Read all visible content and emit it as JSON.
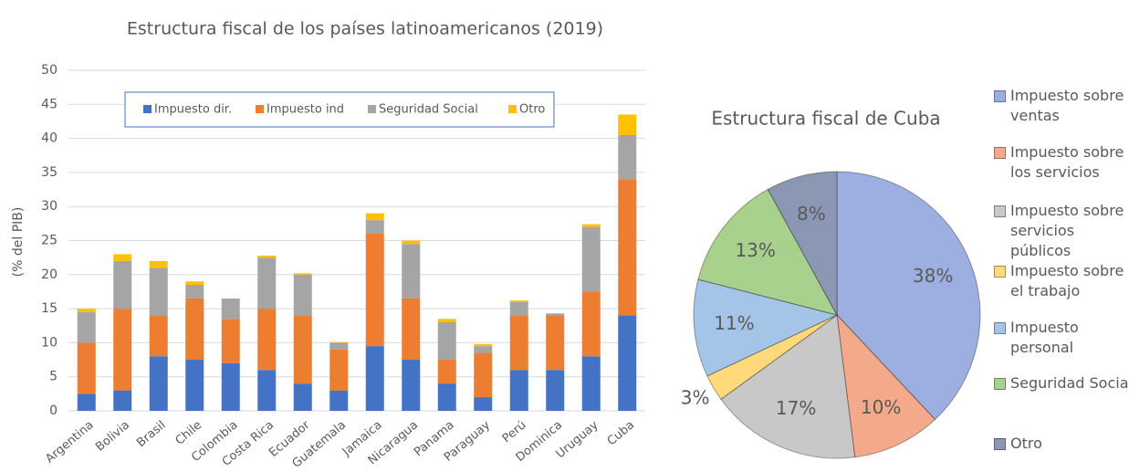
{
  "chart_data": [
    {
      "type": "bar",
      "stacked": true,
      "title": "Estructura fiscal de los países latinoamericanos (2019)",
      "y_label": "(% del PIB)",
      "categories": [
        "Argentina",
        "Bolivia",
        "Brasil",
        "Chile",
        "Colombia",
        "Costa Rica",
        "Ecuador",
        "Guatemala",
        "Jamaica",
        "Nicaragua",
        "Panama",
        "Paraguay",
        "Perú",
        "Dominica",
        "Uruguay",
        "Cuba"
      ],
      "series": [
        {
          "name": "Impuesto dir.",
          "color": "#4472c4",
          "values": [
            2.5,
            3,
            8,
            7.5,
            7,
            6,
            4,
            3,
            9.5,
            7.5,
            4,
            2,
            6,
            6,
            8,
            14
          ]
        },
        {
          "name": "Impuesto ind",
          "color": "#ed7d31",
          "values": [
            7.5,
            12,
            6,
            9,
            6.5,
            9,
            10,
            6,
            16.5,
            9,
            3.5,
            6.5,
            8,
            8,
            9.5,
            20
          ]
        },
        {
          "name": "Seguridad Social",
          "color": "#a5a5a5",
          "values": [
            4.5,
            7,
            7,
            2,
            3,
            7.5,
            6,
            1,
            2,
            8,
            5.5,
            1,
            2,
            0.3,
            9.5,
            6.5
          ]
        },
        {
          "name": "Otro",
          "color": "#ffc000",
          "values": [
            0.5,
            1,
            1,
            0.5,
            0,
            0.3,
            0.2,
            0.1,
            1,
            0.5,
            0.5,
            0.3,
            0.2,
            0,
            0.4,
            3
          ]
        }
      ],
      "ylim": [
        0,
        50
      ],
      "yticks": [
        0,
        5,
        10,
        15,
        20,
        25,
        30,
        35,
        40,
        45,
        50
      ],
      "grid": true,
      "legend": "top"
    },
    {
      "type": "pie",
      "title": "Estructura fiscal de Cuba",
      "categories": [
        "Impuesto sobre ventas",
        "Impuesto sobre los servicios",
        "Impuesto sobre servicios públicos",
        "Impuesto sobre el trabajo",
        "Impuesto personal",
        "Seguridad Social",
        "Otro"
      ],
      "values": [
        38,
        10,
        17,
        3,
        11,
        13,
        8
      ],
      "value_labels": [
        "38%",
        "10%",
        "17%",
        "3%",
        "11%",
        "13%",
        "8%"
      ],
      "colors": [
        "#9dafe0",
        "#f4a98a",
        "#c8c8c8",
        "#ffd97a",
        "#a4c4e8",
        "#a9d18e",
        "#8c97b4"
      ],
      "legend": "right"
    }
  ]
}
